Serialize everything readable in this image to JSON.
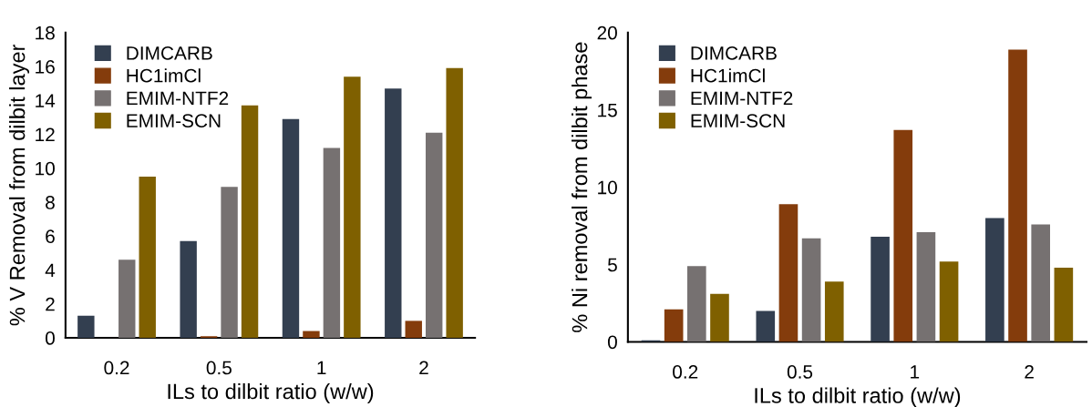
{
  "chart_data": [
    {
      "type": "bar",
      "xlabel": "ILs to dilbit ratio (w/w)",
      "ylabel": "% V Removal from dilbit layer",
      "categories": [
        "0.2",
        "0.5",
        "1",
        "2"
      ],
      "ylim": [
        0,
        18
      ],
      "yticks": [
        0,
        2,
        4,
        6,
        8,
        10,
        12,
        14,
        16,
        18
      ],
      "legend": "top left",
      "grid": false,
      "series": [
        {
          "name": "DIMCARB",
          "color": "#333f50",
          "values": [
            1.3,
            5.7,
            12.9,
            14.7
          ]
        },
        {
          "name": "HC1imCl",
          "color": "#843c0c",
          "values": [
            0,
            0.1,
            0.4,
            1.0
          ]
        },
        {
          "name": "EMIM-NTF2",
          "color": "#767171",
          "values": [
            4.6,
            8.9,
            11.2,
            12.1
          ]
        },
        {
          "name": "EMIM-SCN",
          "color": "#7f6000",
          "values": [
            9.5,
            13.7,
            15.4,
            15.9
          ]
        }
      ]
    },
    {
      "type": "bar",
      "xlabel": "ILs to dilbit ratio (w/w)",
      "ylabel": "% Ni removal from dilbit phase",
      "categories": [
        "0.2",
        "0.5",
        "1",
        "2"
      ],
      "ylim": [
        0,
        20
      ],
      "yticks": [
        0,
        5,
        10,
        15,
        20
      ],
      "legend": "top left",
      "grid": false,
      "series": [
        {
          "name": "DIMCARB",
          "color": "#333f50",
          "values": [
            0.1,
            2.0,
            6.8,
            8.0
          ]
        },
        {
          "name": "HC1imCl",
          "color": "#843c0c",
          "values": [
            2.1,
            8.9,
            13.7,
            18.9
          ]
        },
        {
          "name": "EMIM-NTF2",
          "color": "#767171",
          "values": [
            4.9,
            6.7,
            7.1,
            7.6
          ]
        },
        {
          "name": "EMIM-SCN",
          "color": "#7f6000",
          "values": [
            3.1,
            3.9,
            5.2,
            4.8
          ]
        }
      ]
    }
  ]
}
